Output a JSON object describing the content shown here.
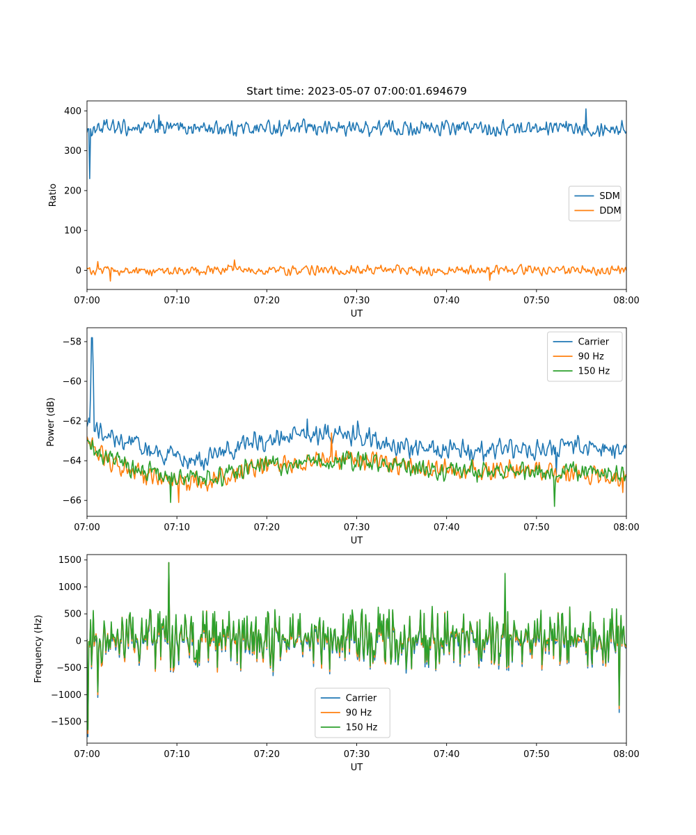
{
  "figure": {
    "title": "Start time: 2023-05-07 07:00:01.694679"
  },
  "colors": {
    "blue": "#1f77b4",
    "orange": "#ff7f0e",
    "green": "#2ca02c"
  },
  "chart_data": [
    {
      "type": "line",
      "xlabel": "UT",
      "ylabel": "Ratio",
      "xlim": [
        "07:00",
        "08:00"
      ],
      "xticks": [
        "07:00",
        "07:10",
        "07:20",
        "07:30",
        "07:40",
        "07:50",
        "08:00"
      ],
      "ylim": [
        -48,
        425
      ],
      "yticks": [
        0,
        100,
        200,
        300,
        400
      ],
      "ytick_labels": [
        "0",
        "100",
        "200",
        "300",
        "400"
      ],
      "legend": {
        "position": "center-right"
      },
      "series": [
        {
          "name": "SDM",
          "color": "#1f77b4",
          "base": 357,
          "amp": 14,
          "profile": [
            [
              0,
              0
            ],
            [
              60,
              0
            ]
          ],
          "spikes": [
            [
              0.15,
              355
            ],
            [
              0.3,
              230
            ],
            [
              8.0,
              390
            ],
            [
              55.5,
              405
            ]
          ]
        },
        {
          "name": "DDM",
          "color": "#ff7f0e",
          "base": 0,
          "amp": 9,
          "profile": [
            [
              0,
              0
            ],
            [
              60,
              0
            ]
          ],
          "spikes": [
            [
              1.2,
              22
            ],
            [
              2.6,
              -27
            ],
            [
              16.4,
              26
            ],
            [
              44.8,
              -25
            ]
          ]
        }
      ]
    },
    {
      "type": "line",
      "xlabel": "UT",
      "ylabel": "Power (dB)",
      "xlim": [
        "07:00",
        "08:00"
      ],
      "xticks": [
        "07:00",
        "07:10",
        "07:20",
        "07:30",
        "07:40",
        "07:50",
        "08:00"
      ],
      "ylim": [
        -66.8,
        -57.3
      ],
      "yticks": [
        -66,
        -64,
        -62,
        -60,
        -58
      ],
      "ytick_labels": [
        "−66",
        "−64",
        "−62",
        "−60",
        "−58"
      ],
      "legend": {
        "position": "upper-right"
      },
      "series": [
        {
          "name": "Carrier",
          "color": "#1f77b4",
          "base": 0,
          "amp": 0.35,
          "profile": [
            [
              0,
              -62.0
            ],
            [
              2,
              -62.7
            ],
            [
              5,
              -63.1
            ],
            [
              9,
              -63.8
            ],
            [
              12,
              -64.0
            ],
            [
              15,
              -63.7
            ],
            [
              18,
              -63.1
            ],
            [
              24,
              -62.7
            ],
            [
              30,
              -62.7
            ],
            [
              35,
              -63.3
            ],
            [
              40,
              -63.5
            ],
            [
              50,
              -63.4
            ],
            [
              55,
              -63.3
            ],
            [
              60,
              -63.5
            ]
          ],
          "spikes": [
            [
              0.4,
              -60.5
            ],
            [
              0.55,
              -57.8
            ],
            [
              0.7,
              -59.5
            ],
            [
              24.5,
              -61.9
            ],
            [
              30.1,
              -62.0
            ],
            [
              52.2,
              -64.7
            ]
          ]
        },
        {
          "name": "90 Hz",
          "color": "#ff7f0e",
          "base": 0,
          "amp": 0.35,
          "profile": [
            [
              0,
              -62.8
            ],
            [
              2,
              -64.0
            ],
            [
              5,
              -64.5
            ],
            [
              9,
              -64.9
            ],
            [
              12,
              -65.1
            ],
            [
              15,
              -64.9
            ],
            [
              18,
              -64.5
            ],
            [
              23,
              -64.1
            ],
            [
              30,
              -63.9
            ],
            [
              35,
              -64.3
            ],
            [
              40,
              -64.4
            ],
            [
              50,
              -64.5
            ],
            [
              55,
              -64.6
            ],
            [
              60,
              -64.8
            ]
          ],
          "spikes": [
            [
              10.2,
              -66.1
            ],
            [
              27.2,
              -62.6
            ],
            [
              59.6,
              -65.6
            ]
          ]
        },
        {
          "name": "150 Hz",
          "color": "#2ca02c",
          "base": 0,
          "amp": 0.35,
          "profile": [
            [
              0,
              -63.2
            ],
            [
              2,
              -63.8
            ],
            [
              5,
              -64.3
            ],
            [
              9,
              -64.8
            ],
            [
              12,
              -65.0
            ],
            [
              15,
              -64.8
            ],
            [
              18,
              -64.4
            ],
            [
              23,
              -64.1
            ],
            [
              30,
              -64.0
            ],
            [
              35,
              -64.3
            ],
            [
              40,
              -64.5
            ],
            [
              50,
              -64.6
            ],
            [
              55,
              -64.5
            ],
            [
              60,
              -64.7
            ]
          ],
          "spikes": [
            [
              9.3,
              -66.1
            ],
            [
              52.0,
              -66.3
            ]
          ]
        }
      ]
    },
    {
      "type": "line",
      "xlabel": "UT",
      "ylabel": "Frequency (Hz)",
      "xlim": [
        "07:00",
        "08:00"
      ],
      "xticks": [
        "07:00",
        "07:10",
        "07:20",
        "07:30",
        "07:40",
        "07:50",
        "08:00"
      ],
      "ylim": [
        -1900,
        1600
      ],
      "yticks": [
        -1500,
        -1000,
        -500,
        0,
        500,
        1000,
        1500
      ],
      "ytick_labels": [
        "−1500",
        "−1000",
        "−500",
        "0",
        "500",
        "1000",
        "1500"
      ],
      "legend": {
        "position": "lower-center"
      },
      "series": [
        {
          "name": "Carrier",
          "color": "#1f77b4",
          "base": -30,
          "amp": 420,
          "profile": [
            [
              0,
              0
            ],
            [
              60,
              0
            ]
          ],
          "spikes": [
            [
              0.1,
              -1780
            ],
            [
              1.2,
              -1050
            ],
            [
              9.1,
              1450
            ],
            [
              59.2,
              -1330
            ]
          ]
        },
        {
          "name": "90 Hz",
          "color": "#ff7f0e",
          "base": 0,
          "amp": 420,
          "profile": [
            [
              0,
              0
            ],
            [
              60,
              0
            ]
          ],
          "spikes": [
            [
              0.1,
              -1720
            ],
            [
              1.2,
              -1000
            ],
            [
              9.1,
              1450
            ],
            [
              59.2,
              -1260
            ]
          ]
        },
        {
          "name": "150 Hz",
          "color": "#2ca02c",
          "base": 30,
          "amp": 420,
          "profile": [
            [
              0,
              0
            ],
            [
              60,
              0
            ]
          ],
          "spikes": [
            [
              0.1,
              -1650
            ],
            [
              1.2,
              -950
            ],
            [
              9.1,
              1450
            ],
            [
              46.5,
              1250
            ],
            [
              59.2,
              -1200
            ]
          ]
        }
      ]
    }
  ]
}
